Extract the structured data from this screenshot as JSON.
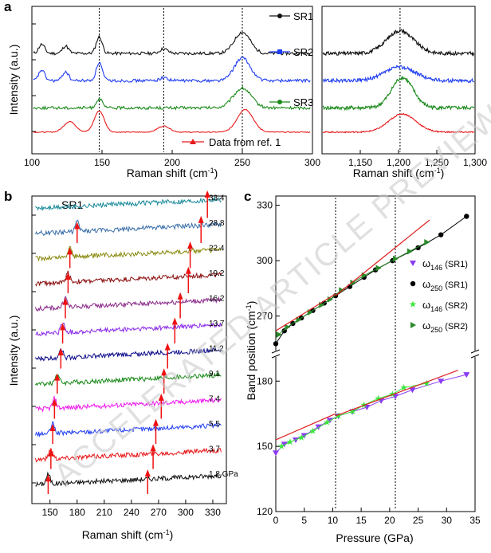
{
  "watermark": "ACCELERATED ARTICLE PREVIEW",
  "colors": {
    "black": "#111111",
    "blue": "#1f3df2",
    "green": "#1a8a1a",
    "red": "#e8191b",
    "cyan": "#1a8a9a",
    "steel": "#3a6ea8",
    "olive": "#8a8a10",
    "darkred": "#8a0e0e",
    "purple": "#8a2a8a",
    "violet": "#8a2ae8",
    "navy": "#0c0c8a",
    "magenta": "#ee1aee",
    "fit": "#dd2020",
    "arrow": "#ee1111",
    "lime": "#39e639",
    "dkgreen": "#2a8a2a",
    "lavender": "#8a3af2"
  },
  "chart_data": [
    {
      "panel": "a",
      "type": "line",
      "xlabel": "Raman shift (cm",
      "xlabel_sup": "-1",
      "ylabel": "Intensity (a.u.)",
      "xlim": [
        100,
        300
      ],
      "xticks": [
        "100",
        "150",
        "200",
        "250",
        "300"
      ],
      "marker_lines_x": [
        148,
        194,
        250
      ],
      "series": [
        {
          "name": "SR1",
          "offset": 3.0,
          "peaks": [
            [
              107,
              0.3,
              3
            ],
            [
              124,
              0.25,
              3
            ],
            [
              148,
              0.55,
              3
            ],
            [
              194,
              0.15,
              4
            ],
            [
              250,
              0.7,
              8
            ]
          ]
        },
        {
          "name": "SR2",
          "offset": 2.1,
          "peaks": [
            [
              107,
              0.35,
              3
            ],
            [
              124,
              0.3,
              3
            ],
            [
              148,
              0.6,
              3
            ],
            [
              194,
              0.1,
              4
            ],
            [
              250,
              0.75,
              8
            ]
          ]
        },
        {
          "name": "SR3",
          "offset": 1.2,
          "peaks": [
            [
              148,
              0.3,
              3
            ],
            [
              250,
              0.65,
              9
            ]
          ]
        },
        {
          "name": "Data from ref. 1",
          "offset": 0.4,
          "peaks": [
            [
              127,
              0.35,
              6
            ],
            [
              148,
              0.7,
              5
            ],
            [
              194,
              0.2,
              6
            ],
            [
              252,
              0.75,
              8
            ]
          ]
        }
      ]
    },
    {
      "panel": "a-right",
      "type": "line",
      "xlabel": "Raman shift (cm",
      "xlabel_sup": "-1",
      "xlim": [
        1100,
        1300
      ],
      "xticks": [
        "1,150",
        "1,200",
        "1,250",
        "1,300"
      ],
      "marker_lines_x": [
        1202
      ],
      "series": [
        {
          "name": "SR1",
          "offset": 3.0,
          "peaks": [
            [
              1202,
              0.75,
              25
            ]
          ]
        },
        {
          "name": "SR2",
          "offset": 2.1,
          "peaks": [
            [
              1202,
              0.45,
              28
            ]
          ]
        },
        {
          "name": "SR3",
          "offset": 1.2,
          "peaks": [
            [
              1205,
              1.0,
              20
            ]
          ]
        },
        {
          "name": "Data from ref. 1",
          "offset": 0.4,
          "peaks": [
            [
              1205,
              0.6,
              25
            ]
          ]
        }
      ]
    },
    {
      "panel": "b",
      "type": "line",
      "title": "SR1",
      "xlabel": "Raman shift (cm",
      "xlabel_sup": "-1",
      "ylabel": "Intensity (a.u.)",
      "xlim": [
        130,
        345
      ],
      "xticks": [
        "150",
        "180",
        "210",
        "240",
        "270",
        "300",
        "330"
      ],
      "series": [
        {
          "pressure": "1.8 GPa",
          "arrows": [
            148,
            258
          ]
        },
        {
          "pressure": "3.7",
          "arrows": [
            151,
            264
          ]
        },
        {
          "pressure": "5.5",
          "arrows": [
            153,
            267
          ]
        },
        {
          "pressure": "7.4",
          "arrows": [
            155,
            273
          ]
        },
        {
          "pressure": "9.1",
          "arrows": [
            158,
            276
          ]
        },
        {
          "pressure": "11.2",
          "arrows": [
            162,
            280
          ]
        },
        {
          "pressure": "13.7",
          "arrows": [
            164,
            288
          ]
        },
        {
          "pressure": "16.2",
          "arrows": [
            167,
            294
          ]
        },
        {
          "pressure": "19.2",
          "arrows": [
            170,
            303
          ]
        },
        {
          "pressure": "22.4",
          "arrows": [
            172,
            305
          ]
        },
        {
          "pressure": "28.8",
          "arrows": [
            180,
            317
          ]
        },
        {
          "pressure": "33.4",
          "arrows": [
            324
          ]
        }
      ]
    },
    {
      "panel": "c",
      "type": "scatter",
      "xlabel": "Pressure (GPa)",
      "ylabel": "Band position (cm",
      "ylabel_sup": "-1",
      "xlim": [
        0,
        35
      ],
      "xticks": [
        "0",
        "5",
        "10",
        "15",
        "20",
        "25",
        "30",
        "35"
      ],
      "yticks_upper": [
        "270",
        "300",
        "330"
      ],
      "yticks_lower": [
        "120",
        "150",
        "180"
      ],
      "transition_pressures": [
        10.5,
        21
      ],
      "legend": [
        {
          "label": "ω",
          "sub": "146",
          "suffix": " (SR1)"
        },
        {
          "label": "ω",
          "sub": "250",
          "suffix": " (SR1)"
        },
        {
          "label": "ω",
          "sub": "146",
          "suffix": " (SR2)"
        },
        {
          "label": "ω",
          "sub": "250",
          "suffix": " (SR2)"
        }
      ],
      "series": [
        {
          "name": "ω146 (SR1)",
          "x": [
            0,
            1.5,
            3.5,
            5,
            7.5,
            9.5,
            11,
            13.5,
            16,
            18.5,
            21,
            24,
            29,
            33.5
          ],
          "y": [
            147,
            151,
            153,
            155,
            159,
            162,
            164,
            166,
            168,
            171,
            173,
            176,
            180,
            183
          ]
        },
        {
          "name": "ω250 (SR1)",
          "x": [
            0,
            1.5,
            3,
            4.5,
            6.5,
            8.5,
            10.5,
            13,
            15.5,
            17.5,
            20.5,
            25,
            29,
            33.5
          ],
          "y": [
            255,
            262,
            266,
            269,
            273,
            277,
            281,
            286,
            291,
            295,
            300,
            307,
            314,
            324
          ]
        },
        {
          "name": "ω146 (SR2)",
          "x": [
            1,
            2.5,
            4.5,
            6.5,
            9,
            11,
            13.5,
            15.5,
            18,
            20.5,
            22.5,
            26.5
          ],
          "y": [
            150,
            152,
            154,
            157,
            161,
            164,
            166,
            169,
            172,
            174,
            177,
            179
          ]
        },
        {
          "name": "ω250 (SR2)",
          "x": [
            0.5,
            2,
            4,
            6,
            8,
            9.5,
            11.5,
            13.5,
            15.5,
            18,
            21,
            23.5,
            26.5
          ],
          "y": [
            260,
            264,
            268,
            272,
            276,
            279,
            284,
            288,
            292,
            296,
            301,
            305,
            310
          ]
        },
        {
          "name": "fit-low-146",
          "x": [
            0,
            10.5
          ],
          "y": [
            153,
            165
          ]
        },
        {
          "name": "fit-high-146",
          "x": [
            10.5,
            32
          ],
          "y": [
            164,
            185
          ]
        },
        {
          "name": "fit-low-250",
          "x": [
            0,
            10.5
          ],
          "y": [
            262,
            282
          ]
        },
        {
          "name": "fit-high-250",
          "x": [
            10.5,
            27
          ],
          "y": [
            281,
            322
          ]
        }
      ]
    }
  ]
}
